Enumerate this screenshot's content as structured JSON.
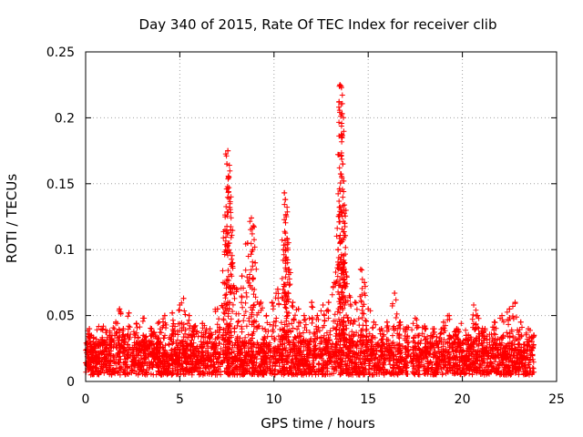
{
  "chart_data": {
    "type": "scatter",
    "title": "Day 340 of 2015, Rate Of TEC Index for receiver clib",
    "xlabel": "GPS time / hours",
    "ylabel": "ROTI / TECUs",
    "xlim": [
      0,
      25
    ],
    "ylim": [
      0,
      0.25
    ],
    "xticks": [
      0,
      5,
      10,
      15,
      20,
      25
    ],
    "xtick_labels": [
      "0",
      "5",
      "10",
      "15",
      "20",
      "25"
    ],
    "yticks": [
      0,
      0.05,
      0.1,
      0.15,
      0.2,
      0.25
    ],
    "ytick_labels": [
      "0",
      "0.05",
      "0.1",
      "0.15",
      "0.2",
      "0.25"
    ],
    "grid": true,
    "marker": "+",
    "color": "#ff0000",
    "series": [
      {
        "name": "ROTI",
        "points": [
          [
            0.1,
            0.012
          ],
          [
            0.2,
            0.04
          ],
          [
            0.3,
            0.035
          ],
          [
            0.5,
            0.025
          ],
          [
            0.8,
            0.028
          ],
          [
            1.0,
            0.03
          ],
          [
            1.3,
            0.035
          ],
          [
            1.6,
            0.045
          ],
          [
            1.8,
            0.055
          ],
          [
            2.0,
            0.04
          ],
          [
            2.3,
            0.052
          ],
          [
            2.7,
            0.044
          ],
          [
            3.1,
            0.048
          ],
          [
            3.5,
            0.04
          ],
          [
            3.9,
            0.045
          ],
          [
            4.2,
            0.05
          ],
          [
            4.6,
            0.052
          ],
          [
            5.0,
            0.058
          ],
          [
            5.2,
            0.063
          ],
          [
            5.5,
            0.05
          ],
          [
            5.8,
            0.042
          ],
          [
            6.2,
            0.044
          ],
          [
            6.6,
            0.04
          ],
          [
            7.0,
            0.055
          ],
          [
            7.3,
            0.075
          ],
          [
            7.4,
            0.115
          ],
          [
            7.5,
            0.165
          ],
          [
            7.55,
            0.175
          ],
          [
            7.6,
            0.155
          ],
          [
            7.65,
            0.132
          ],
          [
            7.7,
            0.115
          ],
          [
            7.8,
            0.09
          ],
          [
            8.0,
            0.07
          ],
          [
            8.3,
            0.08
          ],
          [
            8.6,
            0.105
          ],
          [
            8.8,
            0.124
          ],
          [
            8.9,
            0.118
          ],
          [
            9.0,
            0.09
          ],
          [
            9.3,
            0.06
          ],
          [
            9.6,
            0.05
          ],
          [
            9.9,
            0.06
          ],
          [
            10.2,
            0.07
          ],
          [
            10.5,
            0.1
          ],
          [
            10.55,
            0.143
          ],
          [
            10.6,
            0.138
          ],
          [
            10.65,
            0.125
          ],
          [
            10.7,
            0.108
          ],
          [
            10.8,
            0.085
          ],
          [
            11.0,
            0.06
          ],
          [
            11.3,
            0.055
          ],
          [
            11.6,
            0.05
          ],
          [
            12.0,
            0.06
          ],
          [
            12.3,
            0.05
          ],
          [
            12.6,
            0.058
          ],
          [
            12.9,
            0.06
          ],
          [
            13.2,
            0.075
          ],
          [
            13.4,
            0.1
          ],
          [
            13.45,
            0.172
          ],
          [
            13.5,
            0.225
          ],
          [
            13.55,
            0.224
          ],
          [
            13.6,
            0.203
          ],
          [
            13.65,
            0.165
          ],
          [
            13.7,
            0.152
          ],
          [
            13.75,
            0.12
          ],
          [
            13.8,
            0.083
          ],
          [
            14.0,
            0.065
          ],
          [
            14.3,
            0.06
          ],
          [
            14.6,
            0.085
          ],
          [
            14.8,
            0.075
          ],
          [
            15.0,
            0.055
          ],
          [
            15.3,
            0.045
          ],
          [
            15.7,
            0.04
          ],
          [
            16.0,
            0.045
          ],
          [
            16.4,
            0.067
          ],
          [
            16.7,
            0.045
          ],
          [
            17.0,
            0.04
          ],
          [
            17.5,
            0.048
          ],
          [
            18.0,
            0.042
          ],
          [
            18.5,
            0.04
          ],
          [
            19.0,
            0.045
          ],
          [
            19.3,
            0.05
          ],
          [
            19.7,
            0.04
          ],
          [
            20.2,
            0.035
          ],
          [
            20.6,
            0.058
          ],
          [
            20.8,
            0.05
          ],
          [
            21.2,
            0.04
          ],
          [
            21.7,
            0.045
          ],
          [
            22.1,
            0.05
          ],
          [
            22.5,
            0.055
          ],
          [
            22.8,
            0.06
          ],
          [
            23.1,
            0.045
          ],
          [
            23.5,
            0.04
          ],
          [
            23.8,
            0.035
          ]
        ],
        "baseline_band": [
          0.005,
          0.03
        ]
      }
    ]
  }
}
